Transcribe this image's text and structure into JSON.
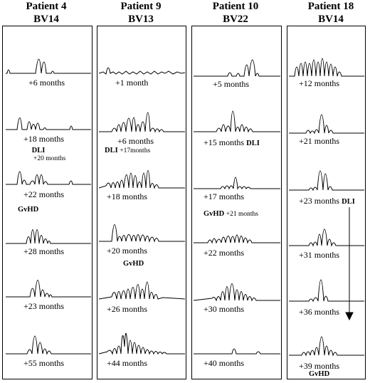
{
  "columns": [
    {
      "patient": "Patient 4",
      "bv": "BV14",
      "captions": [
        "+6 months",
        "+18 months",
        "+22 months",
        "+28 months",
        "+23 months",
        "+55 months"
      ],
      "notes": [
        {
          "id": "dli",
          "text": "DLI",
          "sub": "+20 months"
        },
        {
          "id": "gvhd",
          "text": "GvHD",
          "sub": ""
        }
      ]
    },
    {
      "patient": "Patient 9",
      "bv": "BV13",
      "captions": [
        "+1 month",
        "+6 months",
        "+18 months",
        "+20 months",
        "+26 months",
        "+44 months"
      ],
      "notes": [
        {
          "id": "dli",
          "text": "DLI",
          "sub": "+17months"
        },
        {
          "id": "gvhd",
          "text": "GvHD",
          "sub": ""
        }
      ]
    },
    {
      "patient": "Patient 10",
      "bv": "BV22",
      "captions": [
        "+5 months",
        "+15 months",
        "+17 months",
        "+22 months",
        "+30 months",
        "+40 months"
      ],
      "notes": [
        {
          "id": "dli",
          "text": "DLI",
          "sub": ""
        },
        {
          "id": "gvhd",
          "text": "GvHD",
          "sub": "+21 months"
        }
      ]
    },
    {
      "patient": "Patient 18",
      "bv": "BV14",
      "captions": [
        "+12 months",
        "+21 months",
        "+23 months",
        "+31 months",
        "+36 months",
        "+39 months"
      ],
      "notes": [
        {
          "id": "dli",
          "text": "DLI",
          "sub": ""
        },
        {
          "id": "gvhd",
          "text": "GvHD",
          "sub": ""
        }
      ]
    }
  ]
}
